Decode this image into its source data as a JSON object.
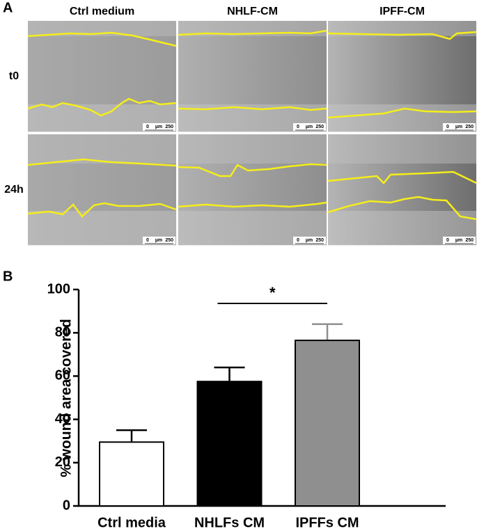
{
  "panel_a": {
    "label": "A",
    "columns": [
      "Ctrl medium",
      "NHLF-CM",
      "IPFF-CM"
    ],
    "rows": [
      "t0",
      "24h"
    ],
    "scale_bar": {
      "start": "0",
      "unit": "µm",
      "end": "250"
    }
  },
  "chart_data": {
    "type": "bar",
    "panel_label": "B",
    "ylabel": "% wound area covered",
    "categories": [
      "Ctrl media",
      "NHLFs CM",
      "IPFFs CM"
    ],
    "values": [
      29.5,
      57.5,
      76.5
    ],
    "errors": [
      5.5,
      6.5,
      7.5
    ],
    "colors": [
      "#ffffff",
      "#000000",
      "#8f8f8f"
    ],
    "ylim": [
      0,
      100
    ],
    "yticks": [
      0,
      20,
      40,
      60,
      80,
      100
    ],
    "significance": [
      {
        "from": 1,
        "to": 2,
        "label": "*"
      }
    ]
  }
}
